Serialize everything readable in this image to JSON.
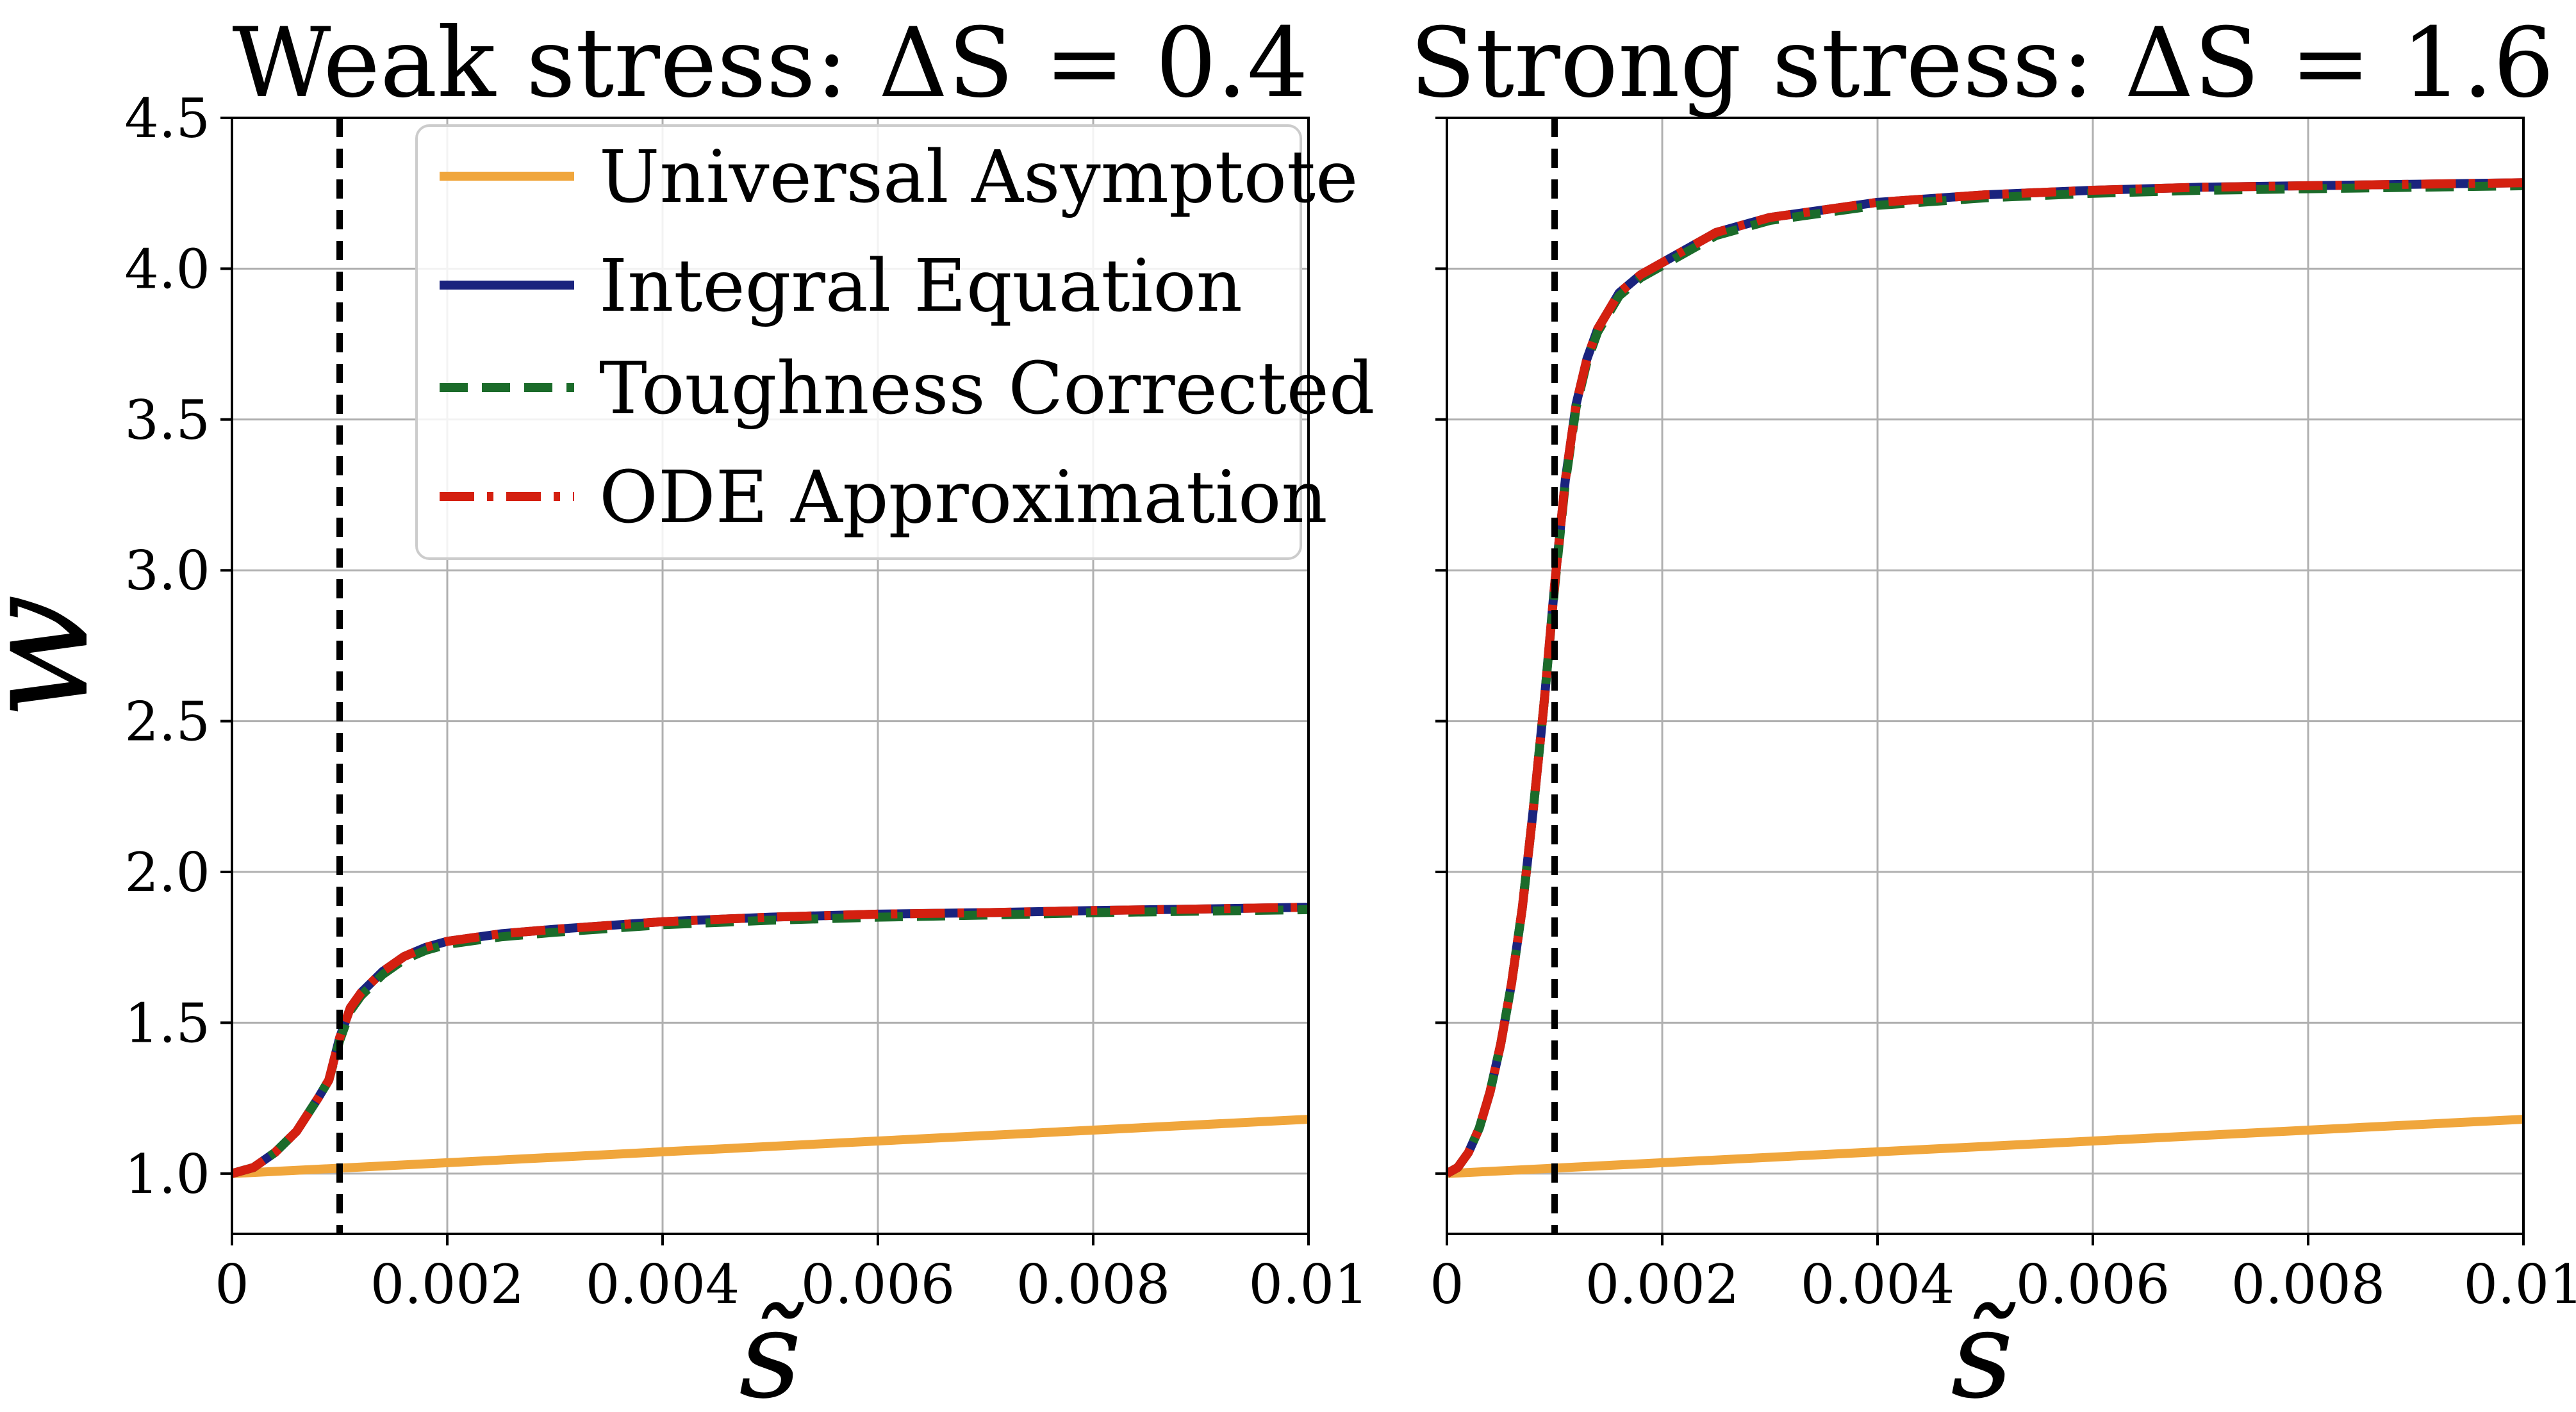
{
  "figure": {
    "ylabel": "w̃",
    "xlabel": "s̃"
  },
  "legend": {
    "entries": [
      {
        "name": "Universal Asymptote",
        "color": "#f0a63c",
        "style": "solid"
      },
      {
        "name": "Integral Equation",
        "color": "#1a237e",
        "style": "solid"
      },
      {
        "name": "Toughness Corrected",
        "color": "#1b6b2a",
        "style": "dashed"
      },
      {
        "name": "ODE Approximation",
        "color": "#d42010",
        "style": "dashdot"
      }
    ],
    "placement": "top-right of left panel"
  },
  "chart_data": [
    {
      "type": "line",
      "title": "Weak stress: ΔS = 0.4",
      "xlabel": "s̃",
      "ylabel": "w̃",
      "xlim": [
        0,
        0.01
      ],
      "ylim": [
        0.8,
        4.5
      ],
      "xticks": [
        0,
        0.002,
        0.004,
        0.006,
        0.008,
        0.01
      ],
      "xtick_labels": [
        "0",
        "0.002",
        "0.004",
        "0.006",
        "0.008",
        "0.01"
      ],
      "yticks": [
        1.0,
        1.5,
        2.0,
        2.5,
        3.0,
        3.5,
        4.0,
        4.5
      ],
      "ytick_labels": [
        "1.0",
        "1.5",
        "2.0",
        "2.5",
        "3.0",
        "3.5",
        "4.0",
        "4.5"
      ],
      "grid": true,
      "vline": {
        "x": 0.001,
        "style": "dashed",
        "color": "#000000"
      },
      "series": [
        {
          "name": "Universal Asymptote",
          "color": "#f0a63c",
          "style": "solid",
          "x": [
            0,
            0.002,
            0.004,
            0.006,
            0.008,
            0.01
          ],
          "y": [
            1.0,
            1.036,
            1.072,
            1.108,
            1.144,
            1.18
          ]
        },
        {
          "name": "Integral Equation",
          "color": "#1a237e",
          "style": "solid",
          "x": [
            0,
            0.0002,
            0.0004,
            0.0006,
            0.0008,
            0.0009,
            0.001,
            0.0011,
            0.0012,
            0.0014,
            0.0016,
            0.0018,
            0.002,
            0.0025,
            0.003,
            0.004,
            0.005,
            0.006,
            0.007,
            0.008,
            0.009,
            0.01
          ],
          "y": [
            1.0,
            1.02,
            1.07,
            1.14,
            1.25,
            1.31,
            1.45,
            1.55,
            1.6,
            1.67,
            1.72,
            1.75,
            1.77,
            1.795,
            1.81,
            1.835,
            1.85,
            1.86,
            1.865,
            1.872,
            1.877,
            1.883
          ]
        },
        {
          "name": "Toughness Corrected",
          "color": "#1b6b2a",
          "style": "dashed",
          "x": [
            0,
            0.0002,
            0.0004,
            0.0006,
            0.0008,
            0.0009,
            0.001,
            0.0011,
            0.0012,
            0.0014,
            0.0016,
            0.0018,
            0.002,
            0.0025,
            0.003,
            0.004,
            0.005,
            0.006,
            0.007,
            0.008,
            0.009,
            0.01
          ],
          "y": [
            1.0,
            1.02,
            1.07,
            1.14,
            1.25,
            1.31,
            1.44,
            1.54,
            1.59,
            1.66,
            1.71,
            1.74,
            1.76,
            1.785,
            1.8,
            1.825,
            1.84,
            1.85,
            1.857,
            1.865,
            1.87,
            1.875
          ]
        },
        {
          "name": "ODE Approximation",
          "color": "#d42010",
          "style": "dashdot",
          "x": [
            0,
            0.0002,
            0.0004,
            0.0006,
            0.0008,
            0.0009,
            0.001,
            0.0011,
            0.0012,
            0.0014,
            0.0016,
            0.0018,
            0.002,
            0.0025,
            0.003,
            0.004,
            0.005,
            0.006,
            0.007,
            0.008,
            0.009,
            0.01
          ],
          "y": [
            1.0,
            1.02,
            1.07,
            1.14,
            1.25,
            1.31,
            1.45,
            1.55,
            1.6,
            1.67,
            1.72,
            1.75,
            1.77,
            1.795,
            1.81,
            1.835,
            1.85,
            1.86,
            1.865,
            1.872,
            1.877,
            1.883
          ]
        }
      ]
    },
    {
      "type": "line",
      "title": "Strong stress: ΔS = 1.6",
      "xlabel": "s̃",
      "ylabel": "",
      "xlim": [
        0,
        0.01
      ],
      "ylim": [
        0.8,
        4.5
      ],
      "xticks": [
        0,
        0.002,
        0.004,
        0.006,
        0.008,
        0.01
      ],
      "xtick_labels": [
        "0",
        "0.002",
        "0.004",
        "0.006",
        "0.008",
        "0.01"
      ],
      "yticks": [
        1.0,
        1.5,
        2.0,
        2.5,
        3.0,
        3.5,
        4.0,
        4.5
      ],
      "ytick_labels": [],
      "grid": true,
      "vline": {
        "x": 0.001,
        "style": "dashed",
        "color": "#000000"
      },
      "series": [
        {
          "name": "Universal Asymptote",
          "color": "#f0a63c",
          "style": "solid",
          "x": [
            0,
            0.002,
            0.004,
            0.006,
            0.008,
            0.01
          ],
          "y": [
            1.0,
            1.036,
            1.072,
            1.108,
            1.144,
            1.18
          ]
        },
        {
          "name": "Integral Equation",
          "color": "#1a237e",
          "style": "solid",
          "x": [
            0,
            0.0001,
            0.0002,
            0.0003,
            0.0004,
            0.0005,
            0.0006,
            0.0007,
            0.0008,
            0.0009,
            0.001,
            0.0011,
            0.0012,
            0.0013,
            0.0014,
            0.0016,
            0.0018,
            0.002,
            0.0025,
            0.003,
            0.004,
            0.005,
            0.006,
            0.007,
            0.008,
            0.009,
            0.01
          ],
          "y": [
            1.0,
            1.02,
            1.07,
            1.15,
            1.27,
            1.43,
            1.63,
            1.88,
            2.2,
            2.55,
            2.95,
            3.3,
            3.55,
            3.7,
            3.8,
            3.92,
            3.98,
            4.02,
            4.12,
            4.17,
            4.22,
            4.245,
            4.26,
            4.27,
            4.275,
            4.28,
            4.285
          ]
        },
        {
          "name": "Toughness Corrected",
          "color": "#1b6b2a",
          "style": "dashed",
          "x": [
            0,
            0.0001,
            0.0002,
            0.0003,
            0.0004,
            0.0005,
            0.0006,
            0.0007,
            0.0008,
            0.0009,
            0.001,
            0.0011,
            0.0012,
            0.0013,
            0.0014,
            0.0016,
            0.0018,
            0.002,
            0.0025,
            0.003,
            0.004,
            0.005,
            0.006,
            0.007,
            0.008,
            0.009,
            0.01
          ],
          "y": [
            1.0,
            1.02,
            1.07,
            1.15,
            1.27,
            1.43,
            1.63,
            1.88,
            2.2,
            2.55,
            2.94,
            3.29,
            3.54,
            3.69,
            3.79,
            3.91,
            3.97,
            4.01,
            4.11,
            4.16,
            4.21,
            4.235,
            4.25,
            4.26,
            4.265,
            4.27,
            4.275
          ]
        },
        {
          "name": "ODE Approximation",
          "color": "#d42010",
          "style": "dashdot",
          "x": [
            0,
            0.0001,
            0.0002,
            0.0003,
            0.0004,
            0.0005,
            0.0006,
            0.0007,
            0.0008,
            0.0009,
            0.001,
            0.0011,
            0.0012,
            0.0013,
            0.0014,
            0.0016,
            0.0018,
            0.002,
            0.0025,
            0.003,
            0.004,
            0.005,
            0.006,
            0.007,
            0.008,
            0.009,
            0.01
          ],
          "y": [
            1.0,
            1.02,
            1.07,
            1.15,
            1.27,
            1.43,
            1.63,
            1.88,
            2.2,
            2.55,
            2.95,
            3.3,
            3.55,
            3.7,
            3.8,
            3.92,
            3.98,
            4.02,
            4.12,
            4.17,
            4.22,
            4.245,
            4.26,
            4.27,
            4.275,
            4.28,
            4.285
          ]
        }
      ]
    }
  ]
}
